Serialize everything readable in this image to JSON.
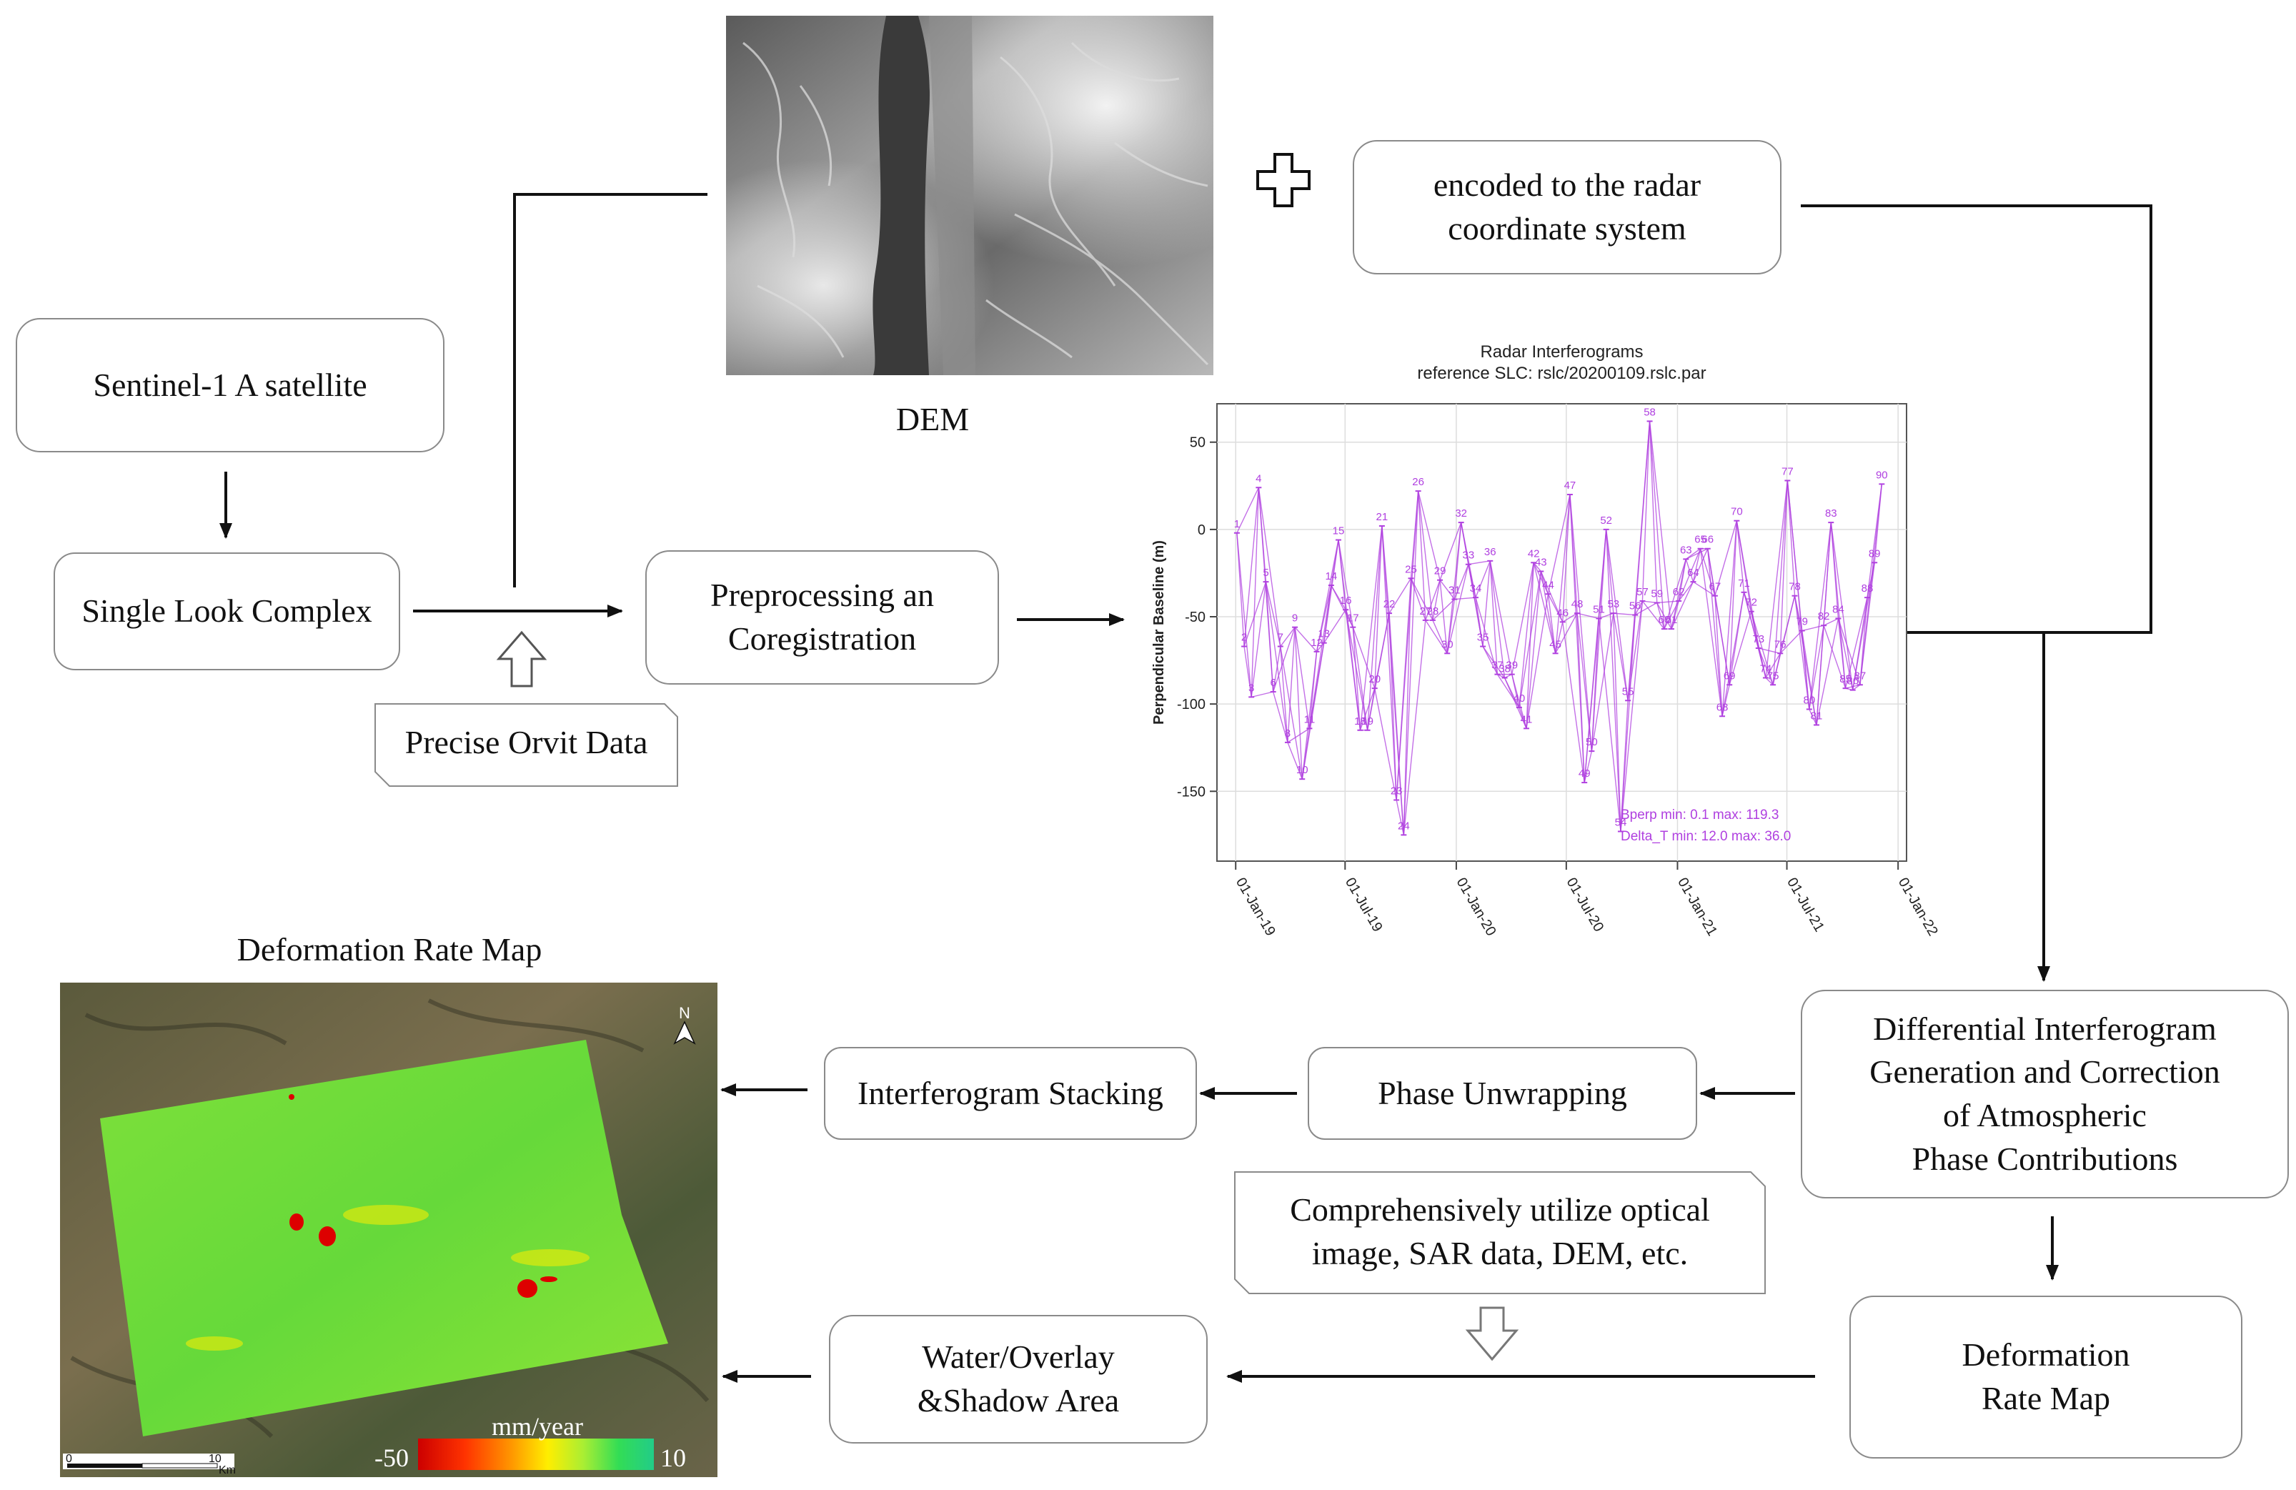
{
  "colors": {
    "stroke": "#111111",
    "box_border": "#8a8a8a",
    "series": "#b040e0",
    "title": "#222222"
  },
  "nodes": {
    "sentinel": "Sentinel-1 A satellite",
    "slc": "Single Look Complex",
    "precise": "Precise Orvit Data",
    "preprocess": "Preprocessing an\nCoregistration",
    "dem_label": "DEM",
    "encoded": "encoded to the radar\ncoordinate system",
    "differential": "Differential Interferogram\nGeneration and Correction\nof Atmospheric\nPhase Contributions",
    "unwrap": "Phase Unwrapping",
    "stacking": "Interferogram Stacking",
    "defmap_box": "Deformation\nRate Map",
    "optical": "Comprehensively utilize optical\nimage, SAR data, DEM, etc.",
    "water": "Water/Overlay\n&Shadow Area",
    "defmap_title": "Deformation Rate Map"
  },
  "map": {
    "unit": "mm/year",
    "scale_min": "-50",
    "scale_max": "10",
    "scalebar_start": "0",
    "scalebar_end": "10",
    "scalebar_unit": "Km",
    "north": "N",
    "colorbar": [
      "#cc0000",
      "#ff3300",
      "#ff9900",
      "#ffee00",
      "#aaee33",
      "#33dd55",
      "#22cc88"
    ]
  },
  "chart_data": {
    "type": "line",
    "title": "Radar Interferograms",
    "subtitle": "reference SLC: rslc/20200109.rslc.par",
    "ylabel": "Perpendicular Baseline (m)",
    "xlabel": "",
    "ylim": [
      -190,
      72
    ],
    "xlim": [
      "2018-12-01",
      "2022-01-15"
    ],
    "yticks": [
      50,
      0,
      -50,
      -100,
      -150
    ],
    "xticks": [
      "01-Jan-19",
      "01-Jul-19",
      "01-Jan-20",
      "01-Jul-20",
      "01-Jan-21",
      "01-Jul-21",
      "01-Jan-22"
    ],
    "xtick_dates": [
      "2019-01-01",
      "2019-07-01",
      "2020-01-01",
      "2020-07-01",
      "2021-01-01",
      "2021-07-01",
      "2022-01-01"
    ],
    "grid": true,
    "stats": [
      "Bperp   min:   0.1   max:   119.3",
      "Delta_T min:   12.0   max:   36.0"
    ],
    "points": [
      {
        "id": 1,
        "date": "2019-01-03",
        "bperp": -2
      },
      {
        "id": 2,
        "date": "2019-01-15",
        "bperp": -67
      },
      {
        "id": 3,
        "date": "2019-01-27",
        "bperp": -96
      },
      {
        "id": 4,
        "date": "2019-02-08",
        "bperp": 24
      },
      {
        "id": 5,
        "date": "2019-02-20",
        "bperp": -30
      },
      {
        "id": 6,
        "date": "2019-03-04",
        "bperp": -93
      },
      {
        "id": 7,
        "date": "2019-03-16",
        "bperp": -67
      },
      {
        "id": 8,
        "date": "2019-03-28",
        "bperp": -122
      },
      {
        "id": 9,
        "date": "2019-04-09",
        "bperp": -56
      },
      {
        "id": 10,
        "date": "2019-04-21",
        "bperp": -143
      },
      {
        "id": 11,
        "date": "2019-05-03",
        "bperp": -114
      },
      {
        "id": 12,
        "date": "2019-05-15",
        "bperp": -70
      },
      {
        "id": 13,
        "date": "2019-05-27",
        "bperp": -65
      },
      {
        "id": 14,
        "date": "2019-06-08",
        "bperp": -32
      },
      {
        "id": 15,
        "date": "2019-06-20",
        "bperp": -6
      },
      {
        "id": 16,
        "date": "2019-07-02",
        "bperp": -46
      },
      {
        "id": 17,
        "date": "2019-07-14",
        "bperp": -56
      },
      {
        "id": 18,
        "date": "2019-07-26",
        "bperp": -115
      },
      {
        "id": 19,
        "date": "2019-08-07",
        "bperp": -115
      },
      {
        "id": 20,
        "date": "2019-08-19",
        "bperp": -91
      },
      {
        "id": 21,
        "date": "2019-08-31",
        "bperp": 2
      },
      {
        "id": 22,
        "date": "2019-09-12",
        "bperp": -48
      },
      {
        "id": 23,
        "date": "2019-09-24",
        "bperp": -155
      },
      {
        "id": 24,
        "date": "2019-10-06",
        "bperp": -175
      },
      {
        "id": 25,
        "date": "2019-10-18",
        "bperp": -28
      },
      {
        "id": 26,
        "date": "2019-10-30",
        "bperp": 22
      },
      {
        "id": 27,
        "date": "2019-11-11",
        "bperp": -52
      },
      {
        "id": 28,
        "date": "2019-11-23",
        "bperp": -52
      },
      {
        "id": 29,
        "date": "2019-12-05",
        "bperp": -29
      },
      {
        "id": 30,
        "date": "2019-12-17",
        "bperp": -71
      },
      {
        "id": 31,
        "date": "2019-12-29",
        "bperp": -40
      },
      {
        "id": 32,
        "date": "2020-01-09",
        "bperp": 4
      },
      {
        "id": 33,
        "date": "2020-01-21",
        "bperp": -20
      },
      {
        "id": 34,
        "date": "2020-02-02",
        "bperp": -39
      },
      {
        "id": 35,
        "date": "2020-02-14",
        "bperp": -67
      },
      {
        "id": 36,
        "date": "2020-02-26",
        "bperp": -18
      },
      {
        "id": 37,
        "date": "2020-03-09",
        "bperp": -83
      },
      {
        "id": 38,
        "date": "2020-03-21",
        "bperp": -85
      },
      {
        "id": 39,
        "date": "2020-04-02",
        "bperp": -83
      },
      {
        "id": 40,
        "date": "2020-04-14",
        "bperp": -102
      },
      {
        "id": 41,
        "date": "2020-04-26",
        "bperp": -114
      },
      {
        "id": 42,
        "date": "2020-05-08",
        "bperp": -19
      },
      {
        "id": 43,
        "date": "2020-05-20",
        "bperp": -24
      },
      {
        "id": 44,
        "date": "2020-06-01",
        "bperp": -37
      },
      {
        "id": 45,
        "date": "2020-06-13",
        "bperp": -71
      },
      {
        "id": 46,
        "date": "2020-06-25",
        "bperp": -53
      },
      {
        "id": 47,
        "date": "2020-07-07",
        "bperp": 20
      },
      {
        "id": 48,
        "date": "2020-07-19",
        "bperp": -48
      },
      {
        "id": 49,
        "date": "2020-07-31",
        "bperp": -145
      },
      {
        "id": 50,
        "date": "2020-08-12",
        "bperp": -127
      },
      {
        "id": 51,
        "date": "2020-08-24",
        "bperp": -51
      },
      {
        "id": 52,
        "date": "2020-09-05",
        "bperp": 0
      },
      {
        "id": 53,
        "date": "2020-09-17",
        "bperp": -48
      },
      {
        "id": 54,
        "date": "2020-09-29",
        "bperp": -173
      },
      {
        "id": 55,
        "date": "2020-10-11",
        "bperp": -98
      },
      {
        "id": 56,
        "date": "2020-10-23",
        "bperp": -49
      },
      {
        "id": 57,
        "date": "2020-11-04",
        "bperp": -41
      },
      {
        "id": 58,
        "date": "2020-11-16",
        "bperp": 62
      },
      {
        "id": 59,
        "date": "2020-11-28",
        "bperp": -42
      },
      {
        "id": 60,
        "date": "2020-12-10",
        "bperp": -57
      },
      {
        "id": 61,
        "date": "2020-12-22",
        "bperp": -57
      },
      {
        "id": 62,
        "date": "2021-01-03",
        "bperp": -41
      },
      {
        "id": 63,
        "date": "2021-01-15",
        "bperp": -17
      },
      {
        "id": 64,
        "date": "2021-01-27",
        "bperp": -30
      },
      {
        "id": 65,
        "date": "2021-02-08",
        "bperp": -11
      },
      {
        "id": 66,
        "date": "2021-02-20",
        "bperp": -11
      },
      {
        "id": 67,
        "date": "2021-03-04",
        "bperp": -38
      },
      {
        "id": 68,
        "date": "2021-03-16",
        "bperp": -107
      },
      {
        "id": 69,
        "date": "2021-03-28",
        "bperp": -89
      },
      {
        "id": 70,
        "date": "2021-04-09",
        "bperp": 5
      },
      {
        "id": 71,
        "date": "2021-04-21",
        "bperp": -36
      },
      {
        "id": 72,
        "date": "2021-05-03",
        "bperp": -47
      },
      {
        "id": 73,
        "date": "2021-05-15",
        "bperp": -68
      },
      {
        "id": 74,
        "date": "2021-05-27",
        "bperp": -85
      },
      {
        "id": 75,
        "date": "2021-06-08",
        "bperp": -89
      },
      {
        "id": 76,
        "date": "2021-06-20",
        "bperp": -71
      },
      {
        "id": 77,
        "date": "2021-07-02",
        "bperp": 28
      },
      {
        "id": 78,
        "date": "2021-07-14",
        "bperp": -38
      },
      {
        "id": 79,
        "date": "2021-07-26",
        "bperp": -58
      },
      {
        "id": 80,
        "date": "2021-08-07",
        "bperp": -103
      },
      {
        "id": 81,
        "date": "2021-08-19",
        "bperp": -112
      },
      {
        "id": 82,
        "date": "2021-08-31",
        "bperp": -55
      },
      {
        "id": 83,
        "date": "2021-09-12",
        "bperp": 4
      },
      {
        "id": 84,
        "date": "2021-09-24",
        "bperp": -51
      },
      {
        "id": 85,
        "date": "2021-10-06",
        "bperp": -91
      },
      {
        "id": 86,
        "date": "2021-10-18",
        "bperp": -92
      },
      {
        "id": 87,
        "date": "2021-10-30",
        "bperp": -89
      },
      {
        "id": 88,
        "date": "2021-11-11",
        "bperp": -39
      },
      {
        "id": 89,
        "date": "2021-11-23",
        "bperp": -19
      },
      {
        "id": 90,
        "date": "2021-12-05",
        "bperp": 26
      }
    ]
  }
}
